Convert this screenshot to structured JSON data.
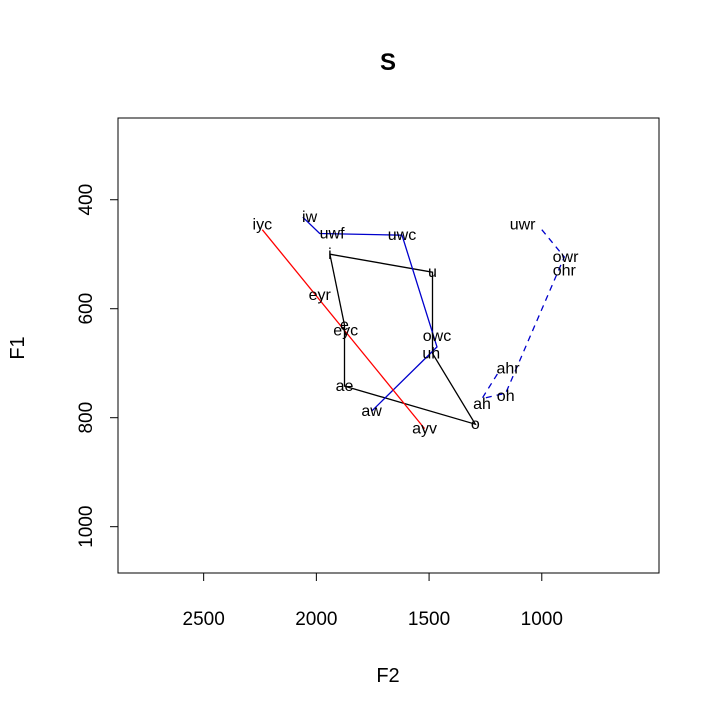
{
  "chart_data": {
    "type": "line",
    "title": "S",
    "xlabel": "F2",
    "ylabel": "F1",
    "xlim": [
      2880,
      480
    ],
    "ylim": [
      1085,
      250
    ],
    "x_ticks": [
      2500,
      2000,
      1500,
      1000
    ],
    "y_ticks": [
      400,
      600,
      800,
      1000
    ],
    "grid": false,
    "points": [
      {
        "label": "iyc",
        "x": 2240,
        "y": 445
      },
      {
        "label": "iw",
        "x": 2030,
        "y": 432
      },
      {
        "label": "uwf",
        "x": 1930,
        "y": 462
      },
      {
        "label": "uwc",
        "x": 1620,
        "y": 465
      },
      {
        "label": "i",
        "x": 1940,
        "y": 500
      },
      {
        "label": "u",
        "x": 1485,
        "y": 533
      },
      {
        "label": "eyr",
        "x": 1985,
        "y": 575
      },
      {
        "label": "e",
        "x": 1875,
        "y": 630
      },
      {
        "label": "eyc",
        "x": 1870,
        "y": 640
      },
      {
        "label": "owc",
        "x": 1465,
        "y": 650
      },
      {
        "label": "uh",
        "x": 1490,
        "y": 682
      },
      {
        "label": "ahr",
        "x": 1150,
        "y": 710
      },
      {
        "label": "ae",
        "x": 1875,
        "y": 742
      },
      {
        "label": "oh",
        "x": 1160,
        "y": 760
      },
      {
        "label": "ah",
        "x": 1265,
        "y": 775
      },
      {
        "label": "aw",
        "x": 1755,
        "y": 788
      },
      {
        "label": "o",
        "x": 1295,
        "y": 812
      },
      {
        "label": "ayv",
        "x": 1520,
        "y": 820
      },
      {
        "label": "uwr",
        "x": 1085,
        "y": 445
      },
      {
        "label": "owr",
        "x": 895,
        "y": 505
      },
      {
        "label": "ohr",
        "x": 900,
        "y": 530
      }
    ],
    "series": [
      {
        "color": "#000000",
        "style": "solid",
        "x": [
          1940,
          1485,
          1485,
          1295,
          1875,
          1875,
          1940
        ],
        "y": [
          500,
          533,
          682,
          812,
          742,
          630,
          500
        ]
      },
      {
        "color": "#0000cc",
        "style": "solid",
        "x": [
          2060,
          1985,
          1620,
          1465,
          1755
        ],
        "y": [
          432,
          462,
          465,
          670,
          788
        ]
      },
      {
        "color": "#ff0000",
        "style": "solid",
        "x": [
          2240,
          1520
        ],
        "y": [
          455,
          820
        ]
      },
      {
        "color": "#0000cc",
        "style": "dashed",
        "x": [
          1000,
          900,
          1160,
          1265,
          1190
        ],
        "y": [
          455,
          505,
          755,
          765,
          715
        ]
      }
    ]
  }
}
